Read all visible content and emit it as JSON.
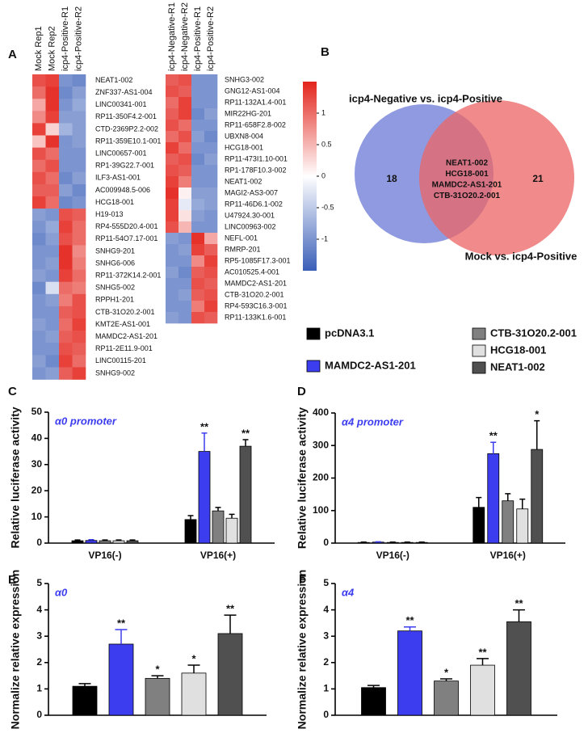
{
  "chart_data": [
    {
      "type": "heatmap",
      "panel_label": "A",
      "columns": [
        "Mock Rep1",
        "Mock Rep2",
        "icp4-Positive-R1",
        "icp4-Positive-R2"
      ],
      "column_colors": [
        "#111111",
        "#111111",
        "#e02020",
        "#e02020"
      ],
      "rows": [
        "NEAT1-002",
        "ZNF337-AS1-004",
        "LINC00341-001",
        "RP11-350F4.2-001",
        "CTD-2369P2.2-002",
        "RP11-359E10.1-001",
        "LINC00657-001",
        "RP1-39G22.7-001",
        "ILF3-AS1-001",
        "AC009948.5-006",
        "HCG18-001",
        "H19-013",
        "RP4-555D20.4-001",
        "RP11-54O7.17-001",
        "SNHG9-201",
        "SNHG6-006",
        "RP11-372K14.2-001",
        "SNHG5-002",
        "RPPH1-201",
        "CTB-31O20.2-001",
        "KMT2E-AS1-001",
        "MAMDC2-AS1-201",
        "RP11-2E11.9-001",
        "LINC00115-201",
        "SNHG9-002"
      ],
      "values": [
        [
          1.2,
          1.3,
          -1.0,
          -1.1
        ],
        [
          1.0,
          1.4,
          -1.1,
          -0.9
        ],
        [
          0.6,
          1.4,
          -1.0,
          -0.8
        ],
        [
          0.8,
          1.3,
          -0.9,
          -0.9
        ],
        [
          1.3,
          0.3,
          -0.7,
          -0.9
        ],
        [
          0.4,
          1.4,
          -1.0,
          -0.9
        ],
        [
          1.2,
          1.0,
          -1.0,
          -1.0
        ],
        [
          1.0,
          1.2,
          -1.0,
          -1.0
        ],
        [
          1.2,
          1.0,
          -1.1,
          -0.9
        ],
        [
          1.1,
          1.1,
          -0.9,
          -1.1
        ],
        [
          1.3,
          1.0,
          -1.1,
          -1.0
        ],
        [
          -0.9,
          -1.0,
          1.2,
          1.1
        ],
        [
          -1.0,
          -0.8,
          1.3,
          1.0
        ],
        [
          -1.1,
          -0.9,
          1.2,
          1.0
        ],
        [
          -1.0,
          -1.0,
          1.4,
          0.8
        ],
        [
          -1.0,
          -0.9,
          1.4,
          0.9
        ],
        [
          -0.9,
          -1.0,
          1.3,
          1.0
        ],
        [
          -1.1,
          -0.3,
          1.0,
          0.9
        ],
        [
          -1.0,
          -0.9,
          0.9,
          1.2
        ],
        [
          -1.0,
          -1.0,
          1.1,
          1.2
        ],
        [
          -0.9,
          -1.0,
          1.0,
          1.3
        ],
        [
          -1.0,
          -0.9,
          1.1,
          1.2
        ],
        [
          -1.0,
          -1.0,
          1.2,
          1.1
        ],
        [
          -0.9,
          -1.1,
          1.3,
          1.0
        ],
        [
          -1.0,
          -0.9,
          1.1,
          1.3
        ]
      ],
      "colorscale": {
        "lim": [
          -1.5,
          1.5
        ],
        "ticks": [
          1,
          0.5,
          0,
          -0.5,
          -1
        ],
        "colors": [
          "#3a5fb8",
          "#ffffff",
          "#e3241c"
        ]
      }
    },
    {
      "type": "heatmap",
      "columns": [
        "icp4-Negative-R1",
        "icp4-Negative-R2",
        "icp4-Positive-R1",
        "icp4-Positive-R2"
      ],
      "column_colors": [
        "#2aa0c8",
        "#2aa0c8",
        "#e02020",
        "#e02020"
      ],
      "rows": [
        "SNHG3-002",
        "GNG12-AS1-004",
        "RP11-132A1.4-001",
        "MIR22HG-201",
        "RP11-658F2.8-002",
        "UBXN8-004",
        "HCG18-001",
        "RP11-473I1.10-001",
        "RP1-178F10.3-002",
        "NEAT1-002",
        "MAGI2-AS3-007",
        "RP11-46D6.1-002",
        "U47924.30-001",
        "LINC00963-002",
        "NEFL-001",
        "RMRP-201",
        "RP5-1085F17.3-001",
        "AC010525.4-001",
        "MAMDC2-AS1-201",
        "CTB-31O20.2-001",
        "RP4-593C16.3-001",
        "RP11-133K1.6-001"
      ],
      "values": [
        [
          1.1,
          1.2,
          -1.0,
          -1.0
        ],
        [
          1.2,
          1.1,
          -1.0,
          -1.0
        ],
        [
          1.0,
          1.3,
          -1.0,
          -1.0
        ],
        [
          1.1,
          1.3,
          -1.1,
          -0.9
        ],
        [
          1.2,
          1.0,
          -1.0,
          -1.0
        ],
        [
          1.0,
          1.2,
          -0.9,
          -1.1
        ],
        [
          1.3,
          1.0,
          -1.0,
          -1.0
        ],
        [
          1.1,
          1.2,
          -1.1,
          -0.9
        ],
        [
          1.2,
          1.1,
          -1.0,
          -1.0
        ],
        [
          1.3,
          0.9,
          -1.0,
          -1.0
        ],
        [
          1.4,
          0.1,
          -0.9,
          -0.9
        ],
        [
          1.3,
          -0.2,
          -0.8,
          -0.9
        ],
        [
          1.3,
          0.2,
          -0.9,
          -1.0
        ],
        [
          1.2,
          0.5,
          -1.0,
          -1.0
        ],
        [
          -0.9,
          -1.0,
          1.4,
          0.6
        ],
        [
          -1.0,
          -0.9,
          1.3,
          1.1
        ],
        [
          -1.0,
          -1.0,
          0.8,
          1.3
        ],
        [
          -0.9,
          -1.1,
          1.1,
          1.2
        ],
        [
          -1.0,
          -1.0,
          1.2,
          1.1
        ],
        [
          -1.0,
          -0.9,
          1.1,
          1.2
        ],
        [
          -1.0,
          -1.0,
          0.9,
          1.3
        ],
        [
          -0.9,
          -1.0,
          1.2,
          1.1
        ]
      ]
    },
    {
      "type": "venn",
      "panel_label": "B",
      "sets": [
        {
          "name": "icp4-Negative vs. icp4-Positive",
          "color": "#6b78d6",
          "count": 18
        },
        {
          "name": "Mock vs. icp4-Positive",
          "color": "#ec6464",
          "count": 21
        }
      ],
      "intersection": [
        "NEAT1-002",
        "HCG18-001",
        "MAMDC2-AS1-201",
        "CTB-31O20.2-001"
      ]
    },
    {
      "type": "bar",
      "panel_label": "C",
      "ylabel": "Relative luciferase activity",
      "annotation": "α0 promoter",
      "categories": [
        "VP16(-)",
        "VP16(+)"
      ],
      "ylim": [
        0,
        50
      ],
      "yticks": [
        0,
        10,
        20,
        30,
        40,
        50
      ],
      "series": [
        {
          "name": "pcDNA3.1",
          "color": "#000000",
          "values": [
            0.9,
            9
          ],
          "errors": [
            0.3,
            1.5
          ],
          "sig": [
            null,
            null
          ]
        },
        {
          "name": "MAMDC2-AS1-201",
          "color": "#3d3df0",
          "values": [
            1,
            35
          ],
          "errors": [
            0.3,
            7
          ],
          "sig": [
            null,
            "**"
          ]
        },
        {
          "name": "CTB-31O20.2-001",
          "color": "#808080",
          "values": [
            0.9,
            12.3
          ],
          "errors": [
            0.3,
            1.3
          ],
          "sig": [
            null,
            null
          ]
        },
        {
          "name": "HCG18-001",
          "color": "#e0e0e0",
          "values": [
            0.9,
            9.5
          ],
          "errors": [
            0.3,
            1.5
          ],
          "sig": [
            null,
            null
          ]
        },
        {
          "name": "NEAT1-002",
          "color": "#505050",
          "values": [
            0.9,
            37
          ],
          "errors": [
            0.3,
            2.5
          ],
          "sig": [
            null,
            "**"
          ]
        }
      ]
    },
    {
      "type": "bar",
      "panel_label": "D",
      "ylabel": "Relative luciferase activity",
      "annotation": "α4 promoter",
      "categories": [
        "VP16(-)",
        "VP16(+)"
      ],
      "ylim": [
        0,
        400
      ],
      "yticks": [
        0,
        100,
        200,
        300,
        400
      ],
      "series": [
        {
          "color": "#000000",
          "values": [
            2,
            110
          ],
          "errors": [
            1,
            30
          ],
          "sig": [
            null,
            null
          ]
        },
        {
          "color": "#3d3df0",
          "values": [
            3,
            275
          ],
          "errors": [
            1,
            35
          ],
          "sig": [
            null,
            "**"
          ]
        },
        {
          "color": "#808080",
          "values": [
            2,
            130
          ],
          "errors": [
            1,
            22
          ],
          "sig": [
            null,
            null
          ]
        },
        {
          "color": "#e0e0e0",
          "values": [
            2,
            105
          ],
          "errors": [
            1,
            30
          ],
          "sig": [
            null,
            null
          ]
        },
        {
          "color": "#505050",
          "values": [
            2,
            288
          ],
          "errors": [
            1,
            88
          ],
          "sig": [
            null,
            "*"
          ]
        }
      ]
    },
    {
      "type": "bar",
      "panel_label": "E",
      "ylabel": "Normalize relative expression",
      "annotation": "α0",
      "categories": [
        null
      ],
      "ylim": [
        0,
        5
      ],
      "yticks": [
        0,
        1,
        2,
        3,
        4,
        5
      ],
      "series": [
        {
          "color": "#000000",
          "values": [
            1.1
          ],
          "errors": [
            0.1
          ],
          "sig": [
            null
          ]
        },
        {
          "color": "#3d3df0",
          "values": [
            2.7
          ],
          "errors": [
            0.55
          ],
          "sig": [
            "**"
          ]
        },
        {
          "color": "#808080",
          "values": [
            1.4
          ],
          "errors": [
            0.1
          ],
          "sig": [
            "*"
          ]
        },
        {
          "color": "#e0e0e0",
          "values": [
            1.6
          ],
          "errors": [
            0.3
          ],
          "sig": [
            "*"
          ]
        },
        {
          "color": "#505050",
          "values": [
            3.1
          ],
          "errors": [
            0.7
          ],
          "sig": [
            "**"
          ]
        }
      ]
    },
    {
      "type": "bar",
      "panel_label": "F",
      "ylabel": "Normalize relative expression",
      "annotation": "α4",
      "categories": [
        null
      ],
      "ylim": [
        0,
        5
      ],
      "yticks": [
        0,
        1,
        2,
        3,
        4,
        5
      ],
      "series": [
        {
          "color": "#000000",
          "values": [
            1.05
          ],
          "errors": [
            0.08
          ],
          "sig": [
            null
          ]
        },
        {
          "color": "#3d3df0",
          "values": [
            3.2
          ],
          "errors": [
            0.15
          ],
          "sig": [
            "**"
          ]
        },
        {
          "color": "#808080",
          "values": [
            1.3
          ],
          "errors": [
            0.08
          ],
          "sig": [
            "*"
          ]
        },
        {
          "color": "#e0e0e0",
          "values": [
            1.9
          ],
          "errors": [
            0.25
          ],
          "sig": [
            "**"
          ]
        },
        {
          "color": "#505050",
          "values": [
            3.55
          ],
          "errors": [
            0.45
          ],
          "sig": [
            "**"
          ]
        }
      ]
    }
  ]
}
